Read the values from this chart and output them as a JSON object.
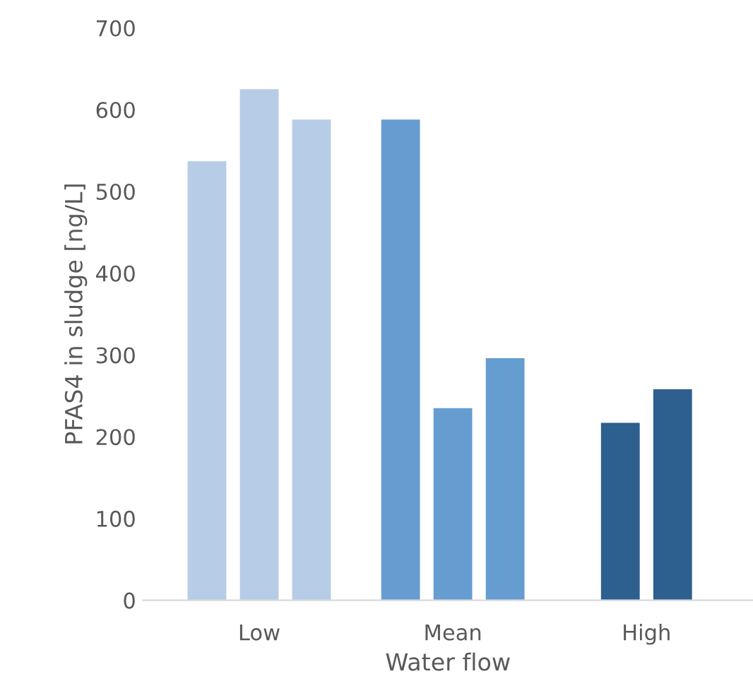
{
  "chart_data": {
    "type": "bar",
    "xlabel": "Water flow",
    "ylabel": "PFAS4 in sludge [ng/L]",
    "categories": [
      "Low",
      "Mean",
      "High"
    ],
    "series": [
      {
        "colors": [
          "#b7cce6",
          "#659dd0",
          "#2d5f8f"
        ],
        "values": [
          537,
          588,
          217
        ]
      },
      {
        "colors": [
          "#b7cce6",
          "#659dd0",
          "#2d5f8f"
        ],
        "values": [
          625,
          235,
          258
        ]
      },
      {
        "colors": [
          "#b7cce6",
          "#659dd0",
          "#2d5f8f"
        ],
        "values": [
          588,
          296,
          null
        ]
      }
    ],
    "ylim": [
      0,
      700
    ],
    "yticks": [
      0,
      100,
      200,
      300,
      400,
      500,
      600,
      700
    ],
    "grid": false,
    "legend": false
  }
}
